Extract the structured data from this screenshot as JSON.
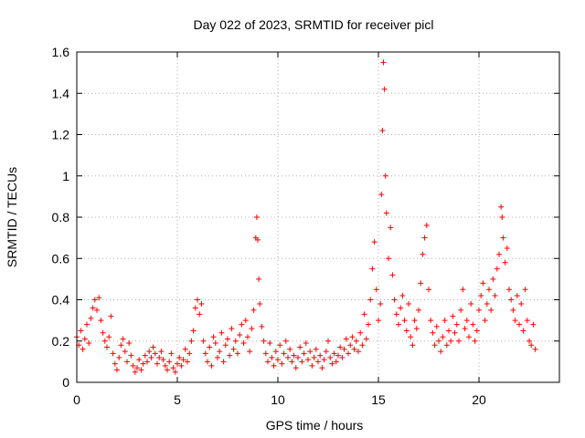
{
  "chart_data": {
    "type": "scatter",
    "title": "Day 022 of 2023, SRMTID for receiver picl",
    "xlabel": "GPS time / hours",
    "ylabel": "SRMTID / TECUs",
    "xlim": [
      0,
      24
    ],
    "ylim": [
      0,
      1.6
    ],
    "xticks": [
      0,
      5,
      10,
      15,
      20
    ],
    "xtick_labels": [
      "0",
      "5",
      "10",
      "15",
      "20"
    ],
    "yticks": [
      0,
      0.2,
      0.4,
      0.6,
      0.8,
      1.0,
      1.2,
      1.4,
      1.6
    ],
    "ytick_labels": [
      "0",
      "0.2",
      "0.4",
      "0.6",
      "0.8",
      "1",
      "1.2",
      "1.4",
      "1.6"
    ],
    "grid": true,
    "marker": "plus",
    "color": "#ff0000",
    "series": [
      {
        "name": "SRMTID",
        "points": [
          [
            0.0,
            0.22
          ],
          [
            0.1,
            0.18
          ],
          [
            0.2,
            0.25
          ],
          [
            0.3,
            0.16
          ],
          [
            0.4,
            0.21
          ],
          [
            0.5,
            0.28
          ],
          [
            0.6,
            0.19
          ],
          [
            0.7,
            0.31
          ],
          [
            0.8,
            0.36
          ],
          [
            0.9,
            0.4
          ],
          [
            1.0,
            0.35
          ],
          [
            1.1,
            0.41
          ],
          [
            1.2,
            0.3
          ],
          [
            1.3,
            0.24
          ],
          [
            1.4,
            0.2
          ],
          [
            1.5,
            0.17
          ],
          [
            1.6,
            0.22
          ],
          [
            1.7,
            0.32
          ],
          [
            1.8,
            0.14
          ],
          [
            1.9,
            0.09
          ],
          [
            2.0,
            0.06
          ],
          [
            2.1,
            0.12
          ],
          [
            2.2,
            0.18
          ],
          [
            2.3,
            0.21
          ],
          [
            2.4,
            0.15
          ],
          [
            2.5,
            0.1
          ],
          [
            2.6,
            0.19
          ],
          [
            2.7,
            0.13
          ],
          [
            2.8,
            0.08
          ],
          [
            2.9,
            0.05
          ],
          [
            3.0,
            0.07
          ],
          [
            3.1,
            0.11
          ],
          [
            3.2,
            0.06
          ],
          [
            3.3,
            0.09
          ],
          [
            3.4,
            0.13
          ],
          [
            3.5,
            0.1
          ],
          [
            3.6,
            0.15
          ],
          [
            3.7,
            0.12
          ],
          [
            3.8,
            0.17
          ],
          [
            3.9,
            0.14
          ],
          [
            4.0,
            0.09
          ],
          [
            4.1,
            0.12
          ],
          [
            4.2,
            0.15
          ],
          [
            4.3,
            0.11
          ],
          [
            4.4,
            0.08
          ],
          [
            4.5,
            0.06
          ],
          [
            4.6,
            0.1
          ],
          [
            4.7,
            0.14
          ],
          [
            4.8,
            0.07
          ],
          [
            4.9,
            0.05
          ],
          [
            5.0,
            0.09
          ],
          [
            5.1,
            0.12
          ],
          [
            5.2,
            0.08
          ],
          [
            5.3,
            0.11
          ],
          [
            5.4,
            0.16
          ],
          [
            5.5,
            0.1
          ],
          [
            5.6,
            0.14
          ],
          [
            5.7,
            0.2
          ],
          [
            5.8,
            0.25
          ],
          [
            5.9,
            0.36
          ],
          [
            6.0,
            0.4
          ],
          [
            6.1,
            0.33
          ],
          [
            6.2,
            0.38
          ],
          [
            6.3,
            0.2
          ],
          [
            6.4,
            0.14
          ],
          [
            6.5,
            0.1
          ],
          [
            6.6,
            0.17
          ],
          [
            6.7,
            0.08
          ],
          [
            6.8,
            0.22
          ],
          [
            6.9,
            0.19
          ],
          [
            7.0,
            0.12
          ],
          [
            7.1,
            0.15
          ],
          [
            7.2,
            0.24
          ],
          [
            7.3,
            0.1
          ],
          [
            7.4,
            0.18
          ],
          [
            7.5,
            0.21
          ],
          [
            7.6,
            0.13
          ],
          [
            7.7,
            0.26
          ],
          [
            7.8,
            0.16
          ],
          [
            7.9,
            0.2
          ],
          [
            8.0,
            0.14
          ],
          [
            8.1,
            0.23
          ],
          [
            8.2,
            0.28
          ],
          [
            8.3,
            0.19
          ],
          [
            8.4,
            0.3
          ],
          [
            8.5,
            0.22
          ],
          [
            8.6,
            0.15
          ],
          [
            8.7,
            0.26
          ],
          [
            8.8,
            0.35
          ],
          [
            8.9,
            0.7
          ],
          [
            8.95,
            0.8
          ],
          [
            9.0,
            0.69
          ],
          [
            9.05,
            0.5
          ],
          [
            9.1,
            0.38
          ],
          [
            9.2,
            0.27
          ],
          [
            9.3,
            0.2
          ],
          [
            9.4,
            0.14
          ],
          [
            9.5,
            0.1
          ],
          [
            9.6,
            0.19
          ],
          [
            9.7,
            0.12
          ],
          [
            9.8,
            0.08
          ],
          [
            9.9,
            0.15
          ],
          [
            10.0,
            0.11
          ],
          [
            10.1,
            0.18
          ],
          [
            10.2,
            0.09
          ],
          [
            10.3,
            0.14
          ],
          [
            10.4,
            0.2
          ],
          [
            10.5,
            0.12
          ],
          [
            10.6,
            0.16
          ],
          [
            10.7,
            0.1
          ],
          [
            10.8,
            0.13
          ],
          [
            10.9,
            0.07
          ],
          [
            11.0,
            0.12
          ],
          [
            11.1,
            0.17
          ],
          [
            11.2,
            0.1
          ],
          [
            11.3,
            0.14
          ],
          [
            11.4,
            0.19
          ],
          [
            11.5,
            0.11
          ],
          [
            11.6,
            0.15
          ],
          [
            11.7,
            0.08
          ],
          [
            11.8,
            0.12
          ],
          [
            11.9,
            0.16
          ],
          [
            12.0,
            0.1
          ],
          [
            12.1,
            0.13
          ],
          [
            12.2,
            0.07
          ],
          [
            12.3,
            0.11
          ],
          [
            12.4,
            0.15
          ],
          [
            12.5,
            0.2
          ],
          [
            12.6,
            0.12
          ],
          [
            12.7,
            0.09
          ],
          [
            12.8,
            0.14
          ],
          [
            12.9,
            0.1
          ],
          [
            13.0,
            0.13
          ],
          [
            13.1,
            0.17
          ],
          [
            13.2,
            0.12
          ],
          [
            13.3,
            0.16
          ],
          [
            13.4,
            0.21
          ],
          [
            13.5,
            0.14
          ],
          [
            13.6,
            0.18
          ],
          [
            13.7,
            0.22
          ],
          [
            13.8,
            0.16
          ],
          [
            13.9,
            0.2
          ],
          [
            14.0,
            0.15
          ],
          [
            14.1,
            0.24
          ],
          [
            14.2,
            0.18
          ],
          [
            14.3,
            0.33
          ],
          [
            14.4,
            0.21
          ],
          [
            14.5,
            0.28
          ],
          [
            14.6,
            0.4
          ],
          [
            14.7,
            0.55
          ],
          [
            14.8,
            0.68
          ],
          [
            14.9,
            0.45
          ],
          [
            15.0,
            0.3
          ],
          [
            15.1,
            0.38
          ],
          [
            15.15,
            0.91
          ],
          [
            15.2,
            1.22
          ],
          [
            15.25,
            1.55
          ],
          [
            15.3,
            1.42
          ],
          [
            15.35,
            1.0
          ],
          [
            15.4,
            0.82
          ],
          [
            15.5,
            0.6
          ],
          [
            15.6,
            0.75
          ],
          [
            15.7,
            0.52
          ],
          [
            15.8,
            0.4
          ],
          [
            15.9,
            0.33
          ],
          [
            16.0,
            0.28
          ],
          [
            16.1,
            0.36
          ],
          [
            16.2,
            0.42
          ],
          [
            16.3,
            0.3
          ],
          [
            16.4,
            0.25
          ],
          [
            16.5,
            0.38
          ],
          [
            16.6,
            0.22
          ],
          [
            16.7,
            0.18
          ],
          [
            16.8,
            0.3
          ],
          [
            16.9,
            0.26
          ],
          [
            17.0,
            0.35
          ],
          [
            17.1,
            0.48
          ],
          [
            17.2,
            0.62
          ],
          [
            17.3,
            0.7
          ],
          [
            17.4,
            0.76
          ],
          [
            17.5,
            0.45
          ],
          [
            17.6,
            0.3
          ],
          [
            17.7,
            0.24
          ],
          [
            17.8,
            0.18
          ],
          [
            17.9,
            0.27
          ],
          [
            18.0,
            0.2
          ],
          [
            18.1,
            0.15
          ],
          [
            18.2,
            0.22
          ],
          [
            18.3,
            0.3
          ],
          [
            18.4,
            0.18
          ],
          [
            18.5,
            0.25
          ],
          [
            18.6,
            0.2
          ],
          [
            18.7,
            0.32
          ],
          [
            18.8,
            0.24
          ],
          [
            18.9,
            0.28
          ],
          [
            19.0,
            0.2
          ],
          [
            19.1,
            0.35
          ],
          [
            19.2,
            0.45
          ],
          [
            19.3,
            0.26
          ],
          [
            19.4,
            0.3
          ],
          [
            19.5,
            0.22
          ],
          [
            19.6,
            0.38
          ],
          [
            19.7,
            0.28
          ],
          [
            19.8,
            0.2
          ],
          [
            19.9,
            0.25
          ],
          [
            20.0,
            0.35
          ],
          [
            20.1,
            0.42
          ],
          [
            20.2,
            0.48
          ],
          [
            20.3,
            0.3
          ],
          [
            20.4,
            0.38
          ],
          [
            20.5,
            0.45
          ],
          [
            20.6,
            0.35
          ],
          [
            20.7,
            0.5
          ],
          [
            20.8,
            0.42
          ],
          [
            20.9,
            0.55
          ],
          [
            21.0,
            0.62
          ],
          [
            21.1,
            0.85
          ],
          [
            21.15,
            0.8
          ],
          [
            21.2,
            0.7
          ],
          [
            21.3,
            0.58
          ],
          [
            21.4,
            0.65
          ],
          [
            21.5,
            0.45
          ],
          [
            21.6,
            0.4
          ],
          [
            21.7,
            0.35
          ],
          [
            21.8,
            0.3
          ],
          [
            21.9,
            0.42
          ],
          [
            22.0,
            0.28
          ],
          [
            22.1,
            0.38
          ],
          [
            22.2,
            0.25
          ],
          [
            22.3,
            0.45
          ],
          [
            22.4,
            0.3
          ],
          [
            22.5,
            0.2
          ],
          [
            22.6,
            0.18
          ],
          [
            22.7,
            0.28
          ],
          [
            22.8,
            0.16
          ]
        ]
      }
    ]
  }
}
